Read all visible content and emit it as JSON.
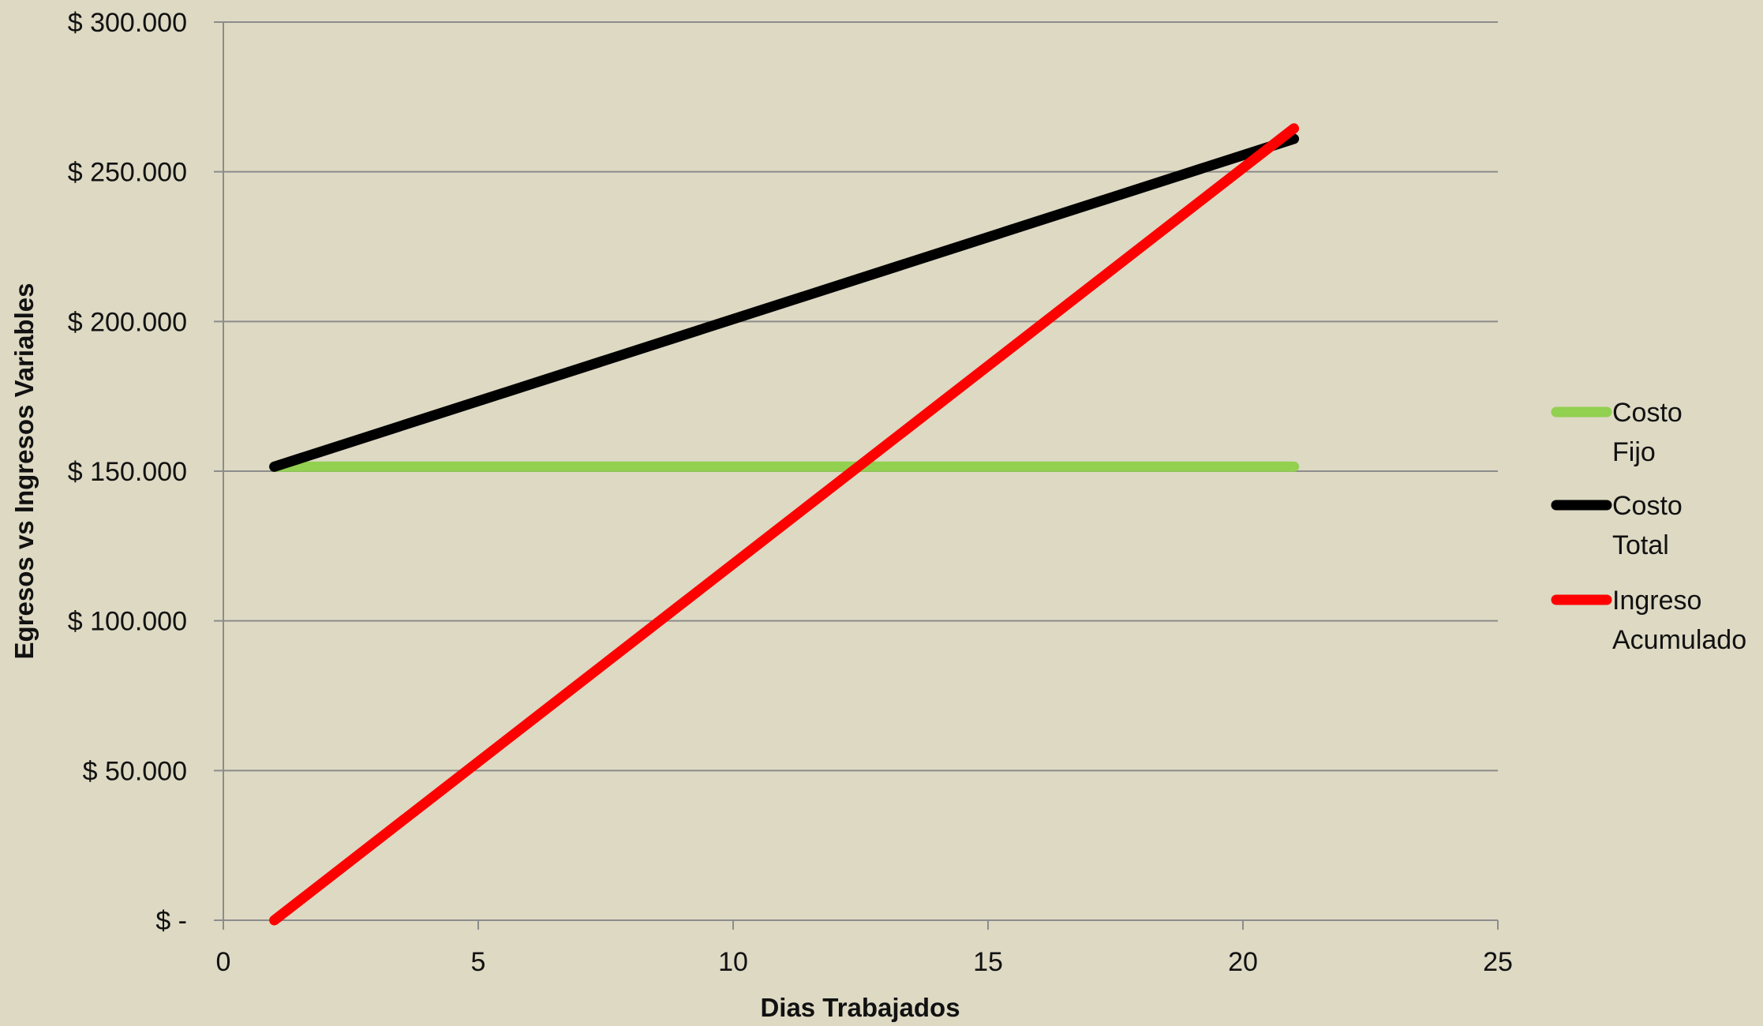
{
  "chart_data": {
    "type": "line",
    "title": "",
    "xlabel": "Dias Trabajados",
    "ylabel": "Egresos vs Ingresos Variables",
    "xlim": [
      0,
      25
    ],
    "ylim": [
      0,
      300000
    ],
    "x_ticks": [
      0,
      5,
      10,
      15,
      20,
      25
    ],
    "x_tick_labels": [
      "0",
      "5",
      "10",
      "15",
      "20",
      "25"
    ],
    "y_ticks": [
      0,
      50000,
      100000,
      150000,
      200000,
      250000,
      300000
    ],
    "y_tick_labels": [
      "$ -",
      "$ 50.000",
      "$ 100.000",
      "$ 150.000",
      "$ 200.000",
      "$ 250.000",
      "$ 300.000"
    ],
    "grid": "horizontal",
    "legend_position": "right",
    "series": [
      {
        "name": "Costo Fijo",
        "legend_lines": [
          "Costo",
          "Fijo"
        ],
        "color": "#92D050",
        "x": [
          1,
          21
        ],
        "y": [
          151500,
          151500
        ]
      },
      {
        "name": "Costo Total",
        "legend_lines": [
          "Costo",
          "Total"
        ],
        "color": "#000000",
        "x": [
          1,
          21
        ],
        "y": [
          151500,
          261000
        ]
      },
      {
        "name": "Ingreso Acumulado",
        "legend_lines": [
          "Ingreso",
          "Acumulado"
        ],
        "color": "#FF0000",
        "x": [
          1,
          21
        ],
        "y": [
          0,
          264500
        ]
      }
    ]
  }
}
